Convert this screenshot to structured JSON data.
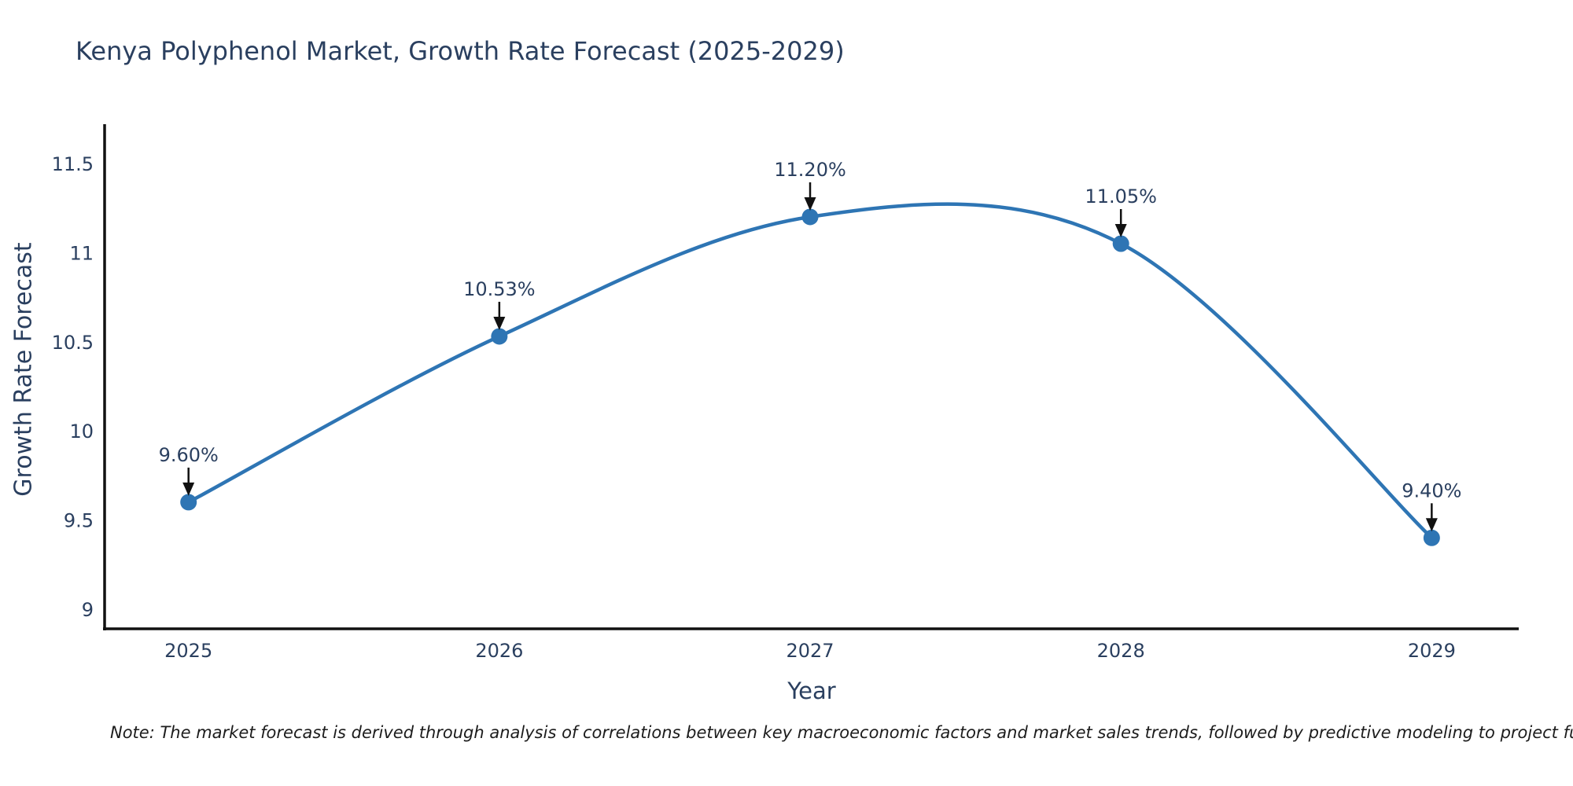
{
  "title": "Kenya Polyphenol Market, Growth Rate Forecast (2025-2029)",
  "note": "Note: The market forecast is derived through analysis of correlations between key macroeconomic factors and market sales trends, followed by predictive modeling to project future sal",
  "chart_data": {
    "type": "line",
    "title": "Kenya Polyphenol Market, Growth Rate Forecast (2025-2029)",
    "xlabel": "Year",
    "ylabel": "Growth Rate Forecast",
    "x": [
      2025,
      2026,
      2027,
      2028,
      2029
    ],
    "values": [
      9.6,
      10.53,
      11.2,
      11.05,
      9.4
    ],
    "point_labels": [
      "9.60%",
      "10.53%",
      "11.20%",
      "11.05%",
      "9.40%"
    ],
    "xticks": [
      2025,
      2026,
      2027,
      2028,
      2029
    ],
    "xtick_labels": [
      "2025",
      "2026",
      "2027",
      "2028",
      "2029"
    ],
    "yticks": [
      9,
      9.5,
      10,
      10.5,
      11,
      11.5
    ],
    "ytick_labels": [
      "9",
      "9.5",
      "10",
      "10.5",
      "11",
      "11.5"
    ],
    "xlim": [
      2024.73,
      2029.28
    ],
    "ylim": [
      8.89,
      11.72
    ],
    "grid": false,
    "legend": "none",
    "line_shape": "spline",
    "colors": {
      "line": "#2e75b4",
      "marker": "#2e75b4",
      "text": "#2a3f5f",
      "axis": "#111111",
      "arrow": "#111111",
      "note": "#1c1c1c",
      "background": "#ffffff"
    }
  }
}
